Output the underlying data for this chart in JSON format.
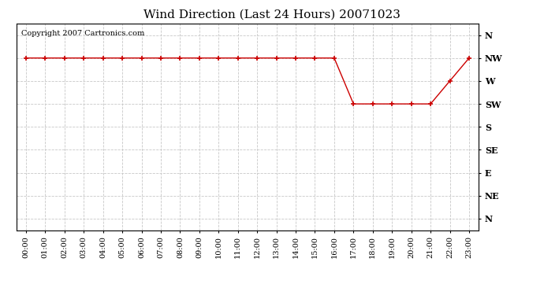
{
  "title": "Wind Direction (Last 24 Hours) 20071023",
  "copyright_text": "Copyright 2007 Cartronics.com",
  "background_color": "#ffffff",
  "plot_background_color": "#ffffff",
  "grid_color": "#c8c8c8",
  "line_color": "#cc0000",
  "marker_color": "#cc0000",
  "x_labels": [
    "00:00",
    "01:00",
    "02:00",
    "03:00",
    "04:00",
    "05:00",
    "06:00",
    "07:00",
    "08:00",
    "09:00",
    "10:00",
    "11:00",
    "12:00",
    "13:00",
    "14:00",
    "15:00",
    "16:00",
    "17:00",
    "18:00",
    "19:00",
    "20:00",
    "21:00",
    "22:00",
    "23:00"
  ],
  "y_labels": [
    "N",
    "NW",
    "W",
    "SW",
    "S",
    "SE",
    "E",
    "NE",
    "N"
  ],
  "y_tick_positions": [
    8,
    7,
    6,
    5,
    4,
    3,
    2,
    1,
    0
  ],
  "data_points": {
    "00:00": 7,
    "01:00": 7,
    "02:00": 7,
    "03:00": 7,
    "04:00": 7,
    "05:00": 7,
    "06:00": 7,
    "07:00": 7,
    "08:00": 7,
    "09:00": 7,
    "10:00": 7,
    "11:00": 7,
    "12:00": 7,
    "13:00": 7,
    "14:00": 7,
    "15:00": 7,
    "16:00": 7,
    "17:00": 5,
    "18:00": 5,
    "19:00": 5,
    "20:00": 5,
    "21:00": 5,
    "22:00": 6,
    "23:00": 7
  },
  "title_fontsize": 11,
  "copyright_fontsize": 7,
  "tick_fontsize": 7,
  "y_label_fontsize": 8,
  "figwidth": 6.9,
  "figheight": 3.75,
  "dpi": 100
}
